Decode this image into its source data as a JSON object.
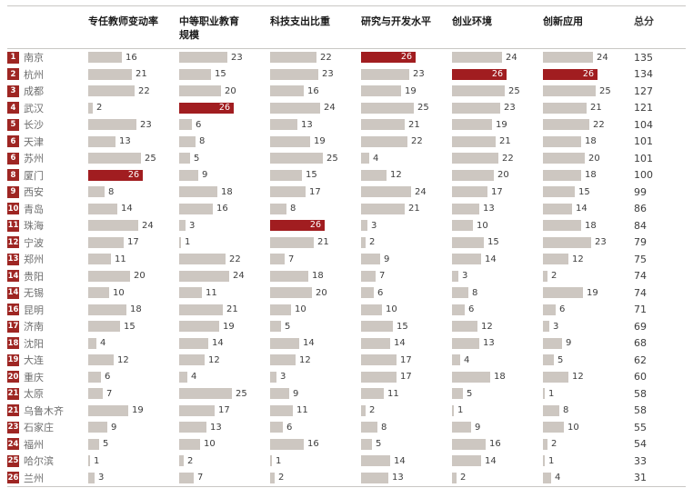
{
  "header": {
    "columns": [
      "专任教师变动率",
      "中等职业教育\n规模",
      "科技支出比重",
      "研究与开发水平",
      "创业环境",
      "创新应用",
      "总分"
    ]
  },
  "chart_data": {
    "type": "table",
    "metric_columns": [
      "专任教师变动率",
      "中等职业教育规模",
      "科技支出比重",
      "研究与开发水平",
      "创业环境",
      "创新应用"
    ],
    "total_column": "总分",
    "max_value": 26,
    "highlight_value": 26,
    "rows": [
      {
        "rank": 1,
        "city": "南京",
        "values": [
          16,
          23,
          22,
          26,
          24,
          24
        ],
        "total": 135
      },
      {
        "rank": 2,
        "city": "杭州",
        "values": [
          21,
          15,
          23,
          23,
          26,
          26
        ],
        "total": 134
      },
      {
        "rank": 3,
        "city": "成都",
        "values": [
          22,
          20,
          16,
          19,
          25,
          25
        ],
        "total": 127
      },
      {
        "rank": 4,
        "city": "武汉",
        "values": [
          2,
          26,
          24,
          25,
          23,
          21
        ],
        "total": 121
      },
      {
        "rank": 5,
        "city": "长沙",
        "values": [
          23,
          6,
          13,
          21,
          19,
          22
        ],
        "total": 104
      },
      {
        "rank": 6,
        "city": "天津",
        "values": [
          13,
          8,
          19,
          22,
          21,
          18
        ],
        "total": 101
      },
      {
        "rank": 6,
        "city": "苏州",
        "values": [
          25,
          5,
          25,
          4,
          22,
          20
        ],
        "total": 101
      },
      {
        "rank": 8,
        "city": "厦门",
        "values": [
          26,
          9,
          15,
          12,
          20,
          18
        ],
        "total": 100
      },
      {
        "rank": 9,
        "city": "西安",
        "values": [
          8,
          18,
          17,
          24,
          17,
          15
        ],
        "total": 99
      },
      {
        "rank": 10,
        "city": "青岛",
        "values": [
          14,
          16,
          8,
          21,
          13,
          14
        ],
        "total": 86
      },
      {
        "rank": 11,
        "city": "珠海",
        "values": [
          24,
          3,
          26,
          3,
          10,
          18
        ],
        "total": 84
      },
      {
        "rank": 12,
        "city": "宁波",
        "values": [
          17,
          1,
          21,
          2,
          15,
          23
        ],
        "total": 79
      },
      {
        "rank": 13,
        "city": "郑州",
        "values": [
          11,
          22,
          7,
          9,
          14,
          12
        ],
        "total": 75
      },
      {
        "rank": 14,
        "city": "贵阳",
        "values": [
          20,
          24,
          18,
          7,
          3,
          2
        ],
        "total": 74
      },
      {
        "rank": 14,
        "city": "无锡",
        "values": [
          10,
          11,
          20,
          6,
          8,
          19
        ],
        "total": 74
      },
      {
        "rank": 16,
        "city": "昆明",
        "values": [
          18,
          21,
          10,
          10,
          6,
          6
        ],
        "total": 71
      },
      {
        "rank": 17,
        "city": "济南",
        "values": [
          15,
          19,
          5,
          15,
          12,
          3
        ],
        "total": 69
      },
      {
        "rank": 18,
        "city": "沈阳",
        "values": [
          4,
          14,
          14,
          14,
          13,
          9
        ],
        "total": 68
      },
      {
        "rank": 19,
        "city": "大连",
        "values": [
          12,
          12,
          12,
          17,
          4,
          5
        ],
        "total": 62
      },
      {
        "rank": 20,
        "city": "重庆",
        "values": [
          6,
          4,
          3,
          17,
          18,
          12
        ],
        "total": 60
      },
      {
        "rank": 21,
        "city": "太原",
        "values": [
          7,
          25,
          9,
          11,
          5,
          1
        ],
        "total": 58
      },
      {
        "rank": 21,
        "city": "乌鲁木齐",
        "values": [
          19,
          17,
          11,
          2,
          1,
          8
        ],
        "total": 58
      },
      {
        "rank": 23,
        "city": "石家庄",
        "values": [
          9,
          13,
          6,
          8,
          9,
          10
        ],
        "total": 55
      },
      {
        "rank": 24,
        "city": "福州",
        "values": [
          5,
          10,
          16,
          5,
          16,
          2
        ],
        "total": 54
      },
      {
        "rank": 25,
        "city": "哈尔滨",
        "values": [
          1,
          2,
          1,
          14,
          14,
          1
        ],
        "total": 33
      },
      {
        "rank": 26,
        "city": "兰州",
        "values": [
          3,
          7,
          2,
          13,
          2,
          4
        ],
        "total": 31
      }
    ]
  },
  "colors": {
    "bar": "#cdc7c1",
    "bar_highlight": "#a11d20",
    "rank_badge": "#9e2623",
    "header_text": "#1a1a1a",
    "city_text": "#6e6e6e",
    "value_text": "#3d3d3d",
    "rule": "#c9c7c4"
  }
}
